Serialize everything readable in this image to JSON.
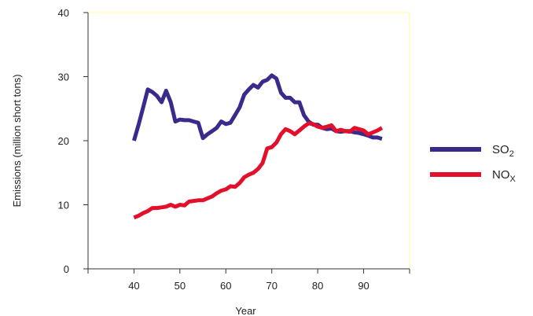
{
  "chart_data": {
    "type": "line",
    "title": "",
    "xlabel": "Year",
    "ylabel": "Emissions (million short tons)",
    "xlim": [
      30,
      100
    ],
    "ylim": [
      0,
      40
    ],
    "x_ticks": [
      30,
      40,
      50,
      60,
      70,
      80,
      90,
      100
    ],
    "x_tick_labels": [
      "",
      "40",
      "50",
      "60",
      "70",
      "80",
      "90",
      ""
    ],
    "y_ticks": [
      0,
      10,
      20,
      30,
      40
    ],
    "y_tick_labels": [
      "0",
      "10",
      "20",
      "30",
      "40"
    ],
    "grid": false,
    "legend_position": "right",
    "series": [
      {
        "name": "SO",
        "name_sub": "2",
        "color": "#3b2a8c",
        "points": [
          [
            40,
            20.0
          ],
          [
            41,
            22.5
          ],
          [
            42,
            25.2
          ],
          [
            43,
            28.0
          ],
          [
            44,
            27.6
          ],
          [
            45,
            27.0
          ],
          [
            46,
            26.0
          ],
          [
            47,
            27.8
          ],
          [
            48,
            26.0
          ],
          [
            49,
            23.0
          ],
          [
            50,
            23.3
          ],
          [
            51,
            23.2
          ],
          [
            52,
            23.2
          ],
          [
            53,
            23.0
          ],
          [
            54,
            22.8
          ],
          [
            55,
            20.4
          ],
          [
            56,
            21.0
          ],
          [
            57,
            21.5
          ],
          [
            58,
            22.0
          ],
          [
            59,
            23.0
          ],
          [
            60,
            22.6
          ],
          [
            61,
            22.8
          ],
          [
            62,
            24.0
          ],
          [
            63,
            25.2
          ],
          [
            64,
            27.2
          ],
          [
            65,
            28.0
          ],
          [
            66,
            28.7
          ],
          [
            67,
            28.3
          ],
          [
            68,
            29.2
          ],
          [
            69,
            29.5
          ],
          [
            70,
            30.2
          ],
          [
            71,
            29.7
          ],
          [
            72,
            27.5
          ],
          [
            73,
            26.7
          ],
          [
            74,
            26.7
          ],
          [
            75,
            26.0
          ],
          [
            76,
            26.0
          ],
          [
            77,
            24.0
          ],
          [
            78,
            23.0
          ],
          [
            79,
            22.5
          ],
          [
            80,
            22.5
          ],
          [
            81,
            22.0
          ],
          [
            82,
            21.8
          ],
          [
            83,
            21.9
          ],
          [
            84,
            21.5
          ],
          [
            85,
            21.4
          ],
          [
            86,
            21.5
          ],
          [
            87,
            21.5
          ],
          [
            88,
            21.3
          ],
          [
            89,
            21.2
          ],
          [
            90,
            21.0
          ],
          [
            91,
            20.8
          ],
          [
            92,
            20.5
          ],
          [
            93,
            20.5
          ],
          [
            94,
            20.3
          ]
        ]
      },
      {
        "name": "NO",
        "name_sub": "X",
        "color": "#e3102b",
        "points": [
          [
            40,
            8.0
          ],
          [
            41,
            8.3
          ],
          [
            42,
            8.7
          ],
          [
            43,
            9.0
          ],
          [
            44,
            9.5
          ],
          [
            45,
            9.5
          ],
          [
            46,
            9.6
          ],
          [
            47,
            9.7
          ],
          [
            48,
            10.0
          ],
          [
            49,
            9.7
          ],
          [
            50,
            10.0
          ],
          [
            51,
            9.9
          ],
          [
            52,
            10.5
          ],
          [
            53,
            10.6
          ],
          [
            54,
            10.7
          ],
          [
            55,
            10.7
          ],
          [
            56,
            11.0
          ],
          [
            57,
            11.3
          ],
          [
            58,
            11.8
          ],
          [
            59,
            12.2
          ],
          [
            60,
            12.4
          ],
          [
            61,
            12.9
          ],
          [
            62,
            12.8
          ],
          [
            63,
            13.4
          ],
          [
            64,
            14.3
          ],
          [
            65,
            14.7
          ],
          [
            66,
            15.0
          ],
          [
            67,
            15.6
          ],
          [
            68,
            16.5
          ],
          [
            69,
            18.8
          ],
          [
            70,
            19.0
          ],
          [
            71,
            19.7
          ],
          [
            72,
            21.0
          ],
          [
            73,
            21.8
          ],
          [
            74,
            21.5
          ],
          [
            75,
            21.0
          ],
          [
            76,
            21.6
          ],
          [
            77,
            22.2
          ],
          [
            78,
            22.7
          ],
          [
            79,
            22.6
          ],
          [
            80,
            22.2
          ],
          [
            81,
            22.0
          ],
          [
            82,
            22.2
          ],
          [
            83,
            22.4
          ],
          [
            84,
            21.5
          ],
          [
            85,
            21.7
          ],
          [
            86,
            21.5
          ],
          [
            87,
            21.4
          ],
          [
            88,
            22.0
          ],
          [
            89,
            21.8
          ],
          [
            90,
            21.6
          ],
          [
            91,
            21.0
          ],
          [
            92,
            21.3
          ],
          [
            93,
            21.6
          ],
          [
            94,
            22.0
          ]
        ]
      }
    ]
  }
}
